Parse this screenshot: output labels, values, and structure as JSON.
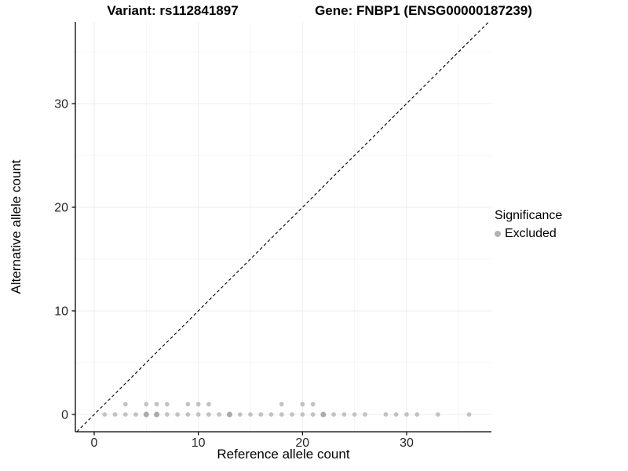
{
  "page": {
    "title_left": "Variant: rs112841897",
    "title_right": "Gene: FNBP1 (ENSG00000187239)"
  },
  "legend": {
    "title": "Significance",
    "items": [
      {
        "label": "Excluded",
        "color": "#b3b3b3"
      }
    ]
  },
  "chart_data": {
    "type": "scatter",
    "title": "Variant: rs112841897 — Gene: FNBP1 (ENSG00000187239)",
    "xlabel": "Reference allele count",
    "ylabel": "Alternative allele count",
    "x_ticks": [
      0,
      10,
      20,
      30
    ],
    "y_ticks": [
      0,
      10,
      20,
      30
    ],
    "x_minor_ticks": [
      5,
      15,
      25,
      35
    ],
    "y_minor_ticks": [
      5,
      15,
      25,
      35
    ],
    "xlim": [
      -1.9,
      38.1
    ],
    "ylim": [
      -1.7,
      37.9
    ],
    "grid": true,
    "legend_position": "right",
    "identity_line": {
      "style": "dashed",
      "color": "#000000",
      "dash": "4 3"
    },
    "colors": {
      "point": "#c0c0c0",
      "point_emphasis": "#a6a6a6",
      "grid_major": "#ececec",
      "grid_minor": "#f5f5f5",
      "axis_line": "#000000",
      "tick_text": "#262626"
    },
    "series": [
      {
        "name": "Excluded",
        "points": [
          [
            1,
            0
          ],
          [
            2,
            0
          ],
          [
            3,
            0
          ],
          [
            4,
            0
          ],
          [
            5,
            0,
            2
          ],
          [
            6,
            0,
            2
          ],
          [
            7,
            0
          ],
          [
            8,
            0
          ],
          [
            9,
            0
          ],
          [
            10,
            0
          ],
          [
            11,
            0
          ],
          [
            12,
            0
          ],
          [
            13,
            0,
            2
          ],
          [
            14,
            0
          ],
          [
            15,
            0
          ],
          [
            16,
            0
          ],
          [
            17,
            0
          ],
          [
            18,
            0
          ],
          [
            19,
            0
          ],
          [
            20,
            0
          ],
          [
            21,
            0
          ],
          [
            22,
            0,
            2
          ],
          [
            23,
            0
          ],
          [
            24,
            0
          ],
          [
            25,
            0
          ],
          [
            26,
            0
          ],
          [
            28,
            0
          ],
          [
            29,
            0
          ],
          [
            30,
            0
          ],
          [
            31,
            0
          ],
          [
            33,
            0
          ],
          [
            36,
            0
          ],
          [
            3,
            1
          ],
          [
            5,
            1
          ],
          [
            6,
            1
          ],
          [
            7,
            1
          ],
          [
            9,
            1
          ],
          [
            10,
            1
          ],
          [
            11,
            1
          ],
          [
            18,
            1
          ],
          [
            20,
            1
          ],
          [
            21,
            1
          ]
        ]
      }
    ]
  }
}
